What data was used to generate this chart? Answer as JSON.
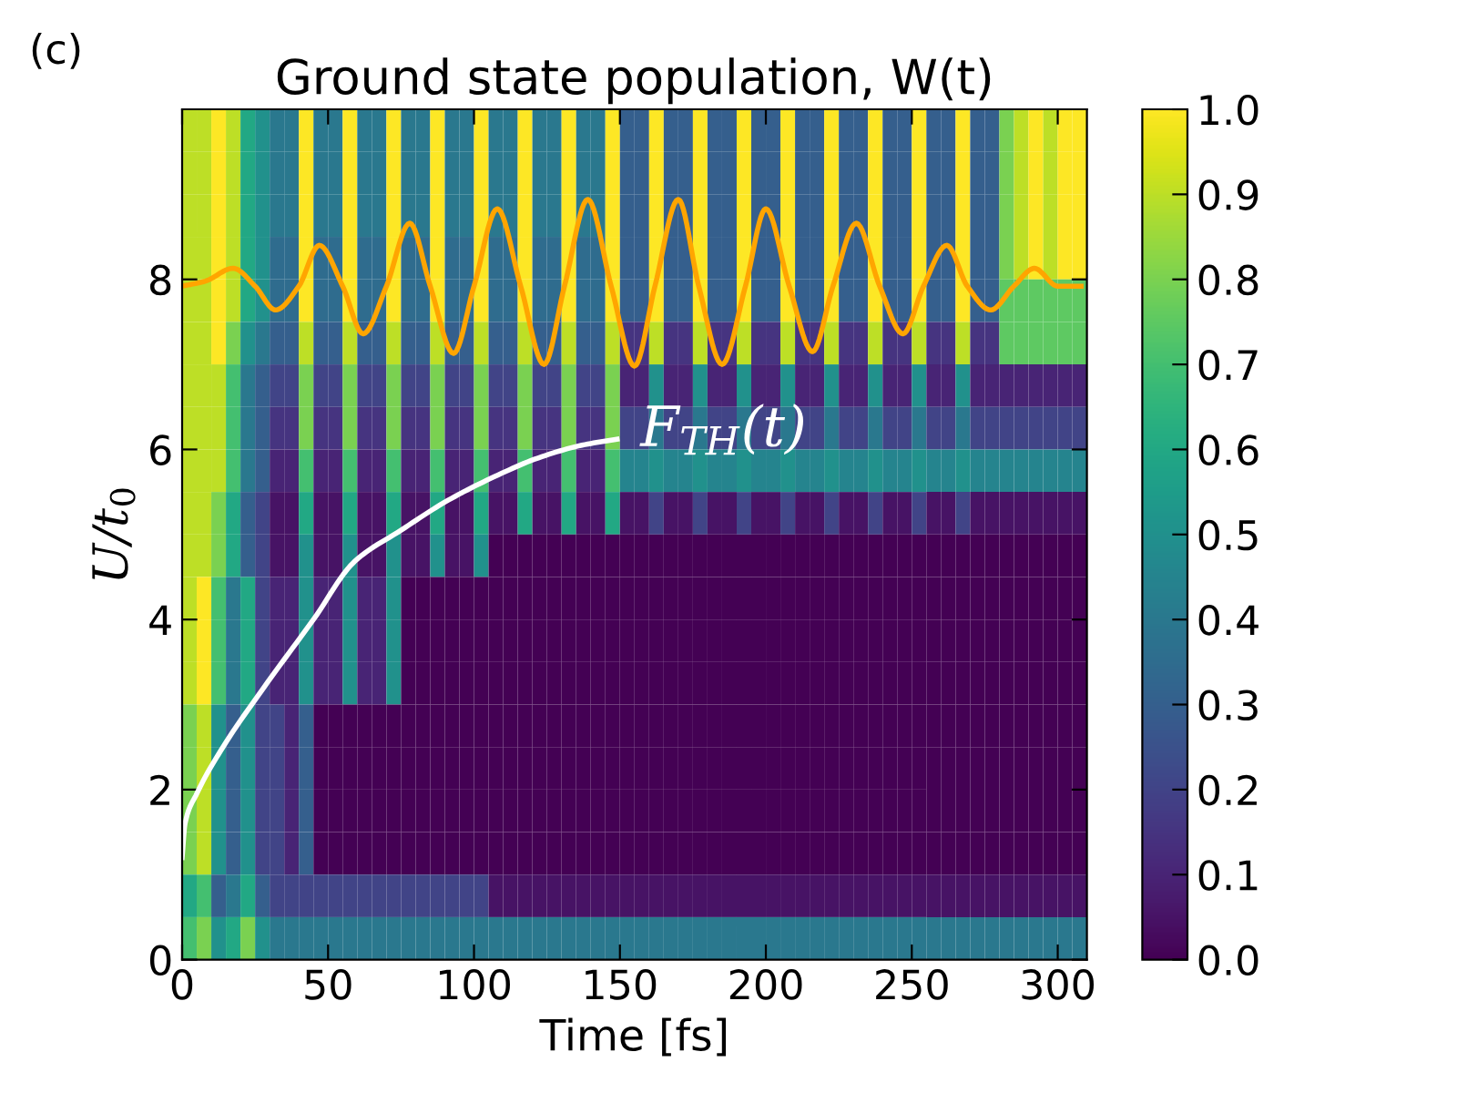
{
  "chart_data": {
    "type": "heatmap",
    "title": "Ground state population, W(t)",
    "xlabel": "Time [fs]",
    "ylabel": "U/t$_{0}$",
    "xlim": [
      0,
      310
    ],
    "ylim": [
      0,
      10
    ],
    "xticks": [
      0,
      50,
      100,
      150,
      200,
      250,
      300
    ],
    "yticks": [
      0,
      2,
      4,
      6,
      8
    ],
    "clim": [
      0,
      1
    ],
    "cticks": [
      {
        "value": 0,
        "label": "0.0"
      },
      {
        "value": 0.1,
        "label": "0.1"
      },
      {
        "value": 0.2,
        "label": "0.2"
      },
      {
        "value": 0.3,
        "label": "0.3"
      },
      {
        "value": 0.4,
        "label": "0.4"
      },
      {
        "value": 0.5,
        "label": "0.5"
      },
      {
        "value": 0.6,
        "label": "0.6"
      },
      {
        "value": 0.7,
        "label": "0.7"
      },
      {
        "value": 0.8,
        "label": "0.8"
      },
      {
        "value": 0.9,
        "label": "0.9"
      },
      {
        "value": 1,
        "label": "1.0"
      }
    ],
    "grid": false,
    "annotations": [
      "(c)"
    ],
    "cells": [
      [
        0.9,
        0.9,
        1.0,
        0.9,
        0.6,
        0.5,
        0.4,
        0.4,
        1.0,
        0.4,
        0.4,
        1.0,
        0.4,
        0.4,
        1.0,
        0.4,
        0.4,
        1.0,
        0.4,
        0.4,
        1.0,
        0.4,
        0.4,
        1.0,
        0.4,
        0.4,
        1.0,
        0.4,
        0.4,
        1.0,
        0.3,
        0.3,
        1.0,
        0.3,
        0.3,
        1.0,
        0.3,
        0.3,
        1.0,
        0.3,
        0.3,
        1.0,
        0.3,
        0.3,
        1.0,
        0.3,
        0.3,
        1.0,
        0.3,
        0.3,
        1.0,
        0.3,
        0.3,
        1.0,
        0.3,
        0.3,
        0.8,
        0.9,
        1.0,
        0.9,
        1.0,
        1.0
      ],
      [
        0.9,
        0.9,
        1.0,
        0.9,
        0.6,
        0.5,
        0.4,
        0.4,
        1.0,
        0.4,
        0.4,
        1.0,
        0.4,
        0.4,
        1.0,
        0.4,
        0.4,
        1.0,
        0.4,
        0.4,
        1.0,
        0.4,
        0.4,
        1.0,
        0.4,
        0.4,
        1.0,
        0.4,
        0.4,
        1.0,
        0.3,
        0.3,
        1.0,
        0.3,
        0.3,
        1.0,
        0.3,
        0.3,
        1.0,
        0.3,
        0.3,
        1.0,
        0.3,
        0.3,
        1.0,
        0.3,
        0.3,
        1.0,
        0.3,
        0.3,
        1.0,
        0.3,
        0.3,
        1.0,
        0.3,
        0.3,
        0.8,
        0.9,
        1.0,
        0.9,
        1.0,
        1.0
      ],
      [
        0.9,
        0.9,
        1.0,
        0.9,
        0.6,
        0.5,
        0.4,
        0.4,
        1.0,
        0.4,
        0.4,
        1.0,
        0.4,
        0.4,
        1.0,
        0.4,
        0.4,
        1.0,
        0.4,
        0.4,
        1.0,
        0.4,
        0.4,
        1.0,
        0.4,
        0.4,
        1.0,
        0.4,
        0.4,
        1.0,
        0.3,
        0.3,
        1.0,
        0.3,
        0.3,
        1.0,
        0.3,
        0.3,
        1.0,
        0.3,
        0.3,
        1.0,
        0.3,
        0.3,
        1.0,
        0.3,
        0.3,
        1.0,
        0.3,
        0.3,
        1.0,
        0.3,
        0.3,
        1.0,
        0.3,
        0.3,
        0.8,
        0.9,
        1.0,
        0.9,
        1.0,
        1.0
      ],
      [
        0.9,
        0.9,
        1.0,
        0.9,
        0.6,
        0.5,
        0.35,
        0.35,
        1.0,
        0.35,
        0.35,
        1.0,
        0.35,
        0.35,
        1.0,
        0.35,
        0.35,
        1.0,
        0.35,
        0.35,
        1.0,
        0.35,
        0.35,
        1.0,
        0.35,
        0.35,
        1.0,
        0.35,
        0.35,
        1.0,
        0.3,
        0.3,
        1.0,
        0.3,
        0.3,
        1.0,
        0.3,
        0.3,
        1.0,
        0.3,
        0.3,
        1.0,
        0.3,
        0.3,
        1.0,
        0.3,
        0.3,
        1.0,
        0.3,
        0.3,
        1.0,
        0.3,
        0.3,
        1.0,
        0.3,
        0.3,
        0.8,
        0.9,
        1.0,
        0.9,
        1.0,
        1.0
      ],
      [
        0.9,
        0.9,
        1.0,
        0.9,
        0.6,
        0.5,
        0.35,
        0.35,
        1.0,
        0.35,
        0.35,
        1.0,
        0.35,
        0.35,
        1.0,
        0.35,
        0.35,
        1.0,
        0.35,
        0.35,
        1.0,
        0.35,
        0.35,
        1.0,
        0.35,
        0.35,
        1.0,
        0.35,
        0.35,
        1.0,
        0.3,
        0.3,
        1.0,
        0.3,
        0.3,
        1.0,
        0.3,
        0.3,
        1.0,
        0.3,
        0.3,
        1.0,
        0.3,
        0.3,
        1.0,
        0.3,
        0.3,
        1.0,
        0.3,
        0.3,
        1.0,
        0.3,
        0.3,
        1.0,
        0.3,
        0.3,
        0.75,
        0.75,
        0.75,
        0.75,
        0.75,
        0.75
      ],
      [
        0.9,
        0.9,
        1.0,
        0.8,
        0.5,
        0.4,
        0.3,
        0.3,
        0.9,
        0.3,
        0.3,
        0.9,
        0.3,
        0.3,
        0.9,
        0.3,
        0.3,
        0.9,
        0.3,
        0.3,
        0.9,
        0.3,
        0.3,
        0.9,
        0.3,
        0.3,
        0.9,
        0.3,
        0.3,
        0.9,
        0.15,
        0.15,
        0.9,
        0.15,
        0.15,
        0.9,
        0.15,
        0.15,
        0.9,
        0.15,
        0.15,
        0.9,
        0.15,
        0.15,
        0.9,
        0.15,
        0.15,
        0.9,
        0.15,
        0.15,
        0.9,
        0.15,
        0.15,
        0.9,
        0.15,
        0.15,
        0.75,
        0.75,
        0.75,
        0.75,
        0.75,
        0.75
      ],
      [
        0.9,
        0.9,
        0.9,
        0.7,
        0.4,
        0.3,
        0.2,
        0.2,
        0.8,
        0.2,
        0.2,
        0.8,
        0.2,
        0.2,
        0.8,
        0.2,
        0.2,
        0.8,
        0.2,
        0.2,
        0.8,
        0.2,
        0.2,
        0.8,
        0.2,
        0.2,
        0.8,
        0.2,
        0.2,
        0.8,
        0.1,
        0.1,
        0.5,
        0.1,
        0.1,
        0.5,
        0.1,
        0.1,
        0.5,
        0.1,
        0.1,
        0.5,
        0.1,
        0.1,
        0.5,
        0.1,
        0.1,
        0.5,
        0.1,
        0.1,
        0.5,
        0.1,
        0.1,
        0.5,
        0.1,
        0.1,
        0.1,
        0.1,
        0.1,
        0.1,
        0.1,
        0.1
      ],
      [
        0.9,
        0.9,
        0.9,
        0.7,
        0.4,
        0.3,
        0.15,
        0.15,
        0.8,
        0.15,
        0.15,
        0.8,
        0.15,
        0.15,
        0.8,
        0.15,
        0.15,
        0.8,
        0.15,
        0.15,
        0.8,
        0.15,
        0.15,
        0.8,
        0.15,
        0.15,
        0.8,
        0.15,
        0.15,
        0.8,
        0.2,
        0.2,
        0.4,
        0.2,
        0.2,
        0.4,
        0.2,
        0.2,
        0.4,
        0.2,
        0.2,
        0.4,
        0.2,
        0.2,
        0.4,
        0.2,
        0.2,
        0.4,
        0.2,
        0.2,
        0.4,
        0.2,
        0.2,
        0.4,
        0.2,
        0.2,
        0.2,
        0.2,
        0.2,
        0.2,
        0.2,
        0.2
      ],
      [
        0.9,
        0.9,
        0.9,
        0.7,
        0.4,
        0.3,
        0.1,
        0.1,
        0.7,
        0.1,
        0.1,
        0.7,
        0.1,
        0.1,
        0.7,
        0.1,
        0.1,
        0.7,
        0.1,
        0.1,
        0.7,
        0.1,
        0.1,
        0.7,
        0.1,
        0.1,
        0.7,
        0.1,
        0.1,
        0.7,
        0.45,
        0.45,
        0.5,
        0.45,
        0.45,
        0.5,
        0.45,
        0.45,
        0.5,
        0.45,
        0.45,
        0.5,
        0.45,
        0.45,
        0.5,
        0.45,
        0.45,
        0.5,
        0.45,
        0.45,
        0.5,
        0.45,
        0.45,
        0.5,
        0.45,
        0.45,
        0.45,
        0.45,
        0.45,
        0.45,
        0.45,
        0.45
      ],
      [
        0.9,
        0.9,
        0.8,
        0.6,
        0.3,
        0.2,
        0.05,
        0.05,
        0.6,
        0.05,
        0.05,
        0.6,
        0.05,
        0.05,
        0.6,
        0.05,
        0.05,
        0.6,
        0.05,
        0.05,
        0.6,
        0.05,
        0.05,
        0.6,
        0.05,
        0.05,
        0.6,
        0.05,
        0.05,
        0.6,
        0.05,
        0.05,
        0.2,
        0.05,
        0.05,
        0.2,
        0.05,
        0.05,
        0.2,
        0.05,
        0.05,
        0.2,
        0.05,
        0.05,
        0.2,
        0.05,
        0.05,
        0.2,
        0.05,
        0.05,
        0.2,
        0.05,
        0.05,
        0.2,
        0.05,
        0.05,
        0.05,
        0.05,
        0.05,
        0.05,
        0.05,
        0.05
      ],
      [
        0.9,
        0.9,
        0.8,
        0.6,
        0.3,
        0.2,
        0.05,
        0.05,
        0.5,
        0.05,
        0.05,
        0.5,
        0.05,
        0.05,
        0.5,
        0.05,
        0.05,
        0.5,
        0.05,
        0.05,
        0.5,
        0,
        0,
        0,
        0,
        0,
        0,
        0,
        0,
        0,
        0,
        0,
        0,
        0,
        0,
        0,
        0,
        0,
        0,
        0,
        0,
        0,
        0,
        0,
        0,
        0,
        0,
        0,
        0,
        0,
        0,
        0,
        0,
        0,
        0,
        0,
        0,
        0,
        0,
        0,
        0,
        0
      ],
      [
        0.9,
        1.0,
        0.7,
        0.4,
        0.6,
        0.2,
        0.1,
        0.1,
        0.5,
        0.1,
        0.1,
        0.5,
        0.1,
        0.1,
        0.5,
        0,
        0,
        0,
        0,
        0,
        0,
        0,
        0,
        0,
        0,
        0,
        0,
        0,
        0,
        0,
        0,
        0,
        0,
        0,
        0,
        0,
        0,
        0,
        0,
        0,
        0,
        0,
        0,
        0,
        0,
        0,
        0,
        0,
        0,
        0,
        0,
        0,
        0,
        0,
        0,
        0,
        0,
        0,
        0,
        0,
        0,
        0
      ],
      [
        0.9,
        1.0,
        0.7,
        0.4,
        0.6,
        0.2,
        0.1,
        0.1,
        0.5,
        0.1,
        0.1,
        0.5,
        0.1,
        0.1,
        0.5,
        0,
        0,
        0,
        0,
        0,
        0,
        0,
        0,
        0,
        0,
        0,
        0,
        0,
        0,
        0,
        0,
        0,
        0,
        0,
        0,
        0,
        0,
        0,
        0,
        0,
        0,
        0,
        0,
        0,
        0,
        0,
        0,
        0,
        0,
        0,
        0,
        0,
        0,
        0,
        0,
        0,
        0,
        0,
        0,
        0,
        0,
        0
      ],
      [
        0.9,
        1.0,
        0.7,
        0.4,
        0.6,
        0.2,
        0.1,
        0.1,
        0.5,
        0.1,
        0.1,
        0.5,
        0.1,
        0.1,
        0.5,
        0,
        0,
        0,
        0,
        0,
        0,
        0,
        0,
        0,
        0,
        0,
        0,
        0,
        0,
        0,
        0,
        0,
        0,
        0,
        0,
        0,
        0,
        0,
        0,
        0,
        0,
        0,
        0,
        0,
        0,
        0,
        0,
        0,
        0,
        0,
        0,
        0,
        0,
        0,
        0,
        0,
        0,
        0,
        0,
        0,
        0,
        0
      ],
      [
        0.8,
        0.9,
        0.5,
        0.3,
        0.5,
        0.2,
        0.2,
        0.1,
        0.3,
        0,
        0,
        0,
        0,
        0,
        0,
        0,
        0,
        0,
        0,
        0,
        0,
        0,
        0,
        0,
        0,
        0,
        0,
        0,
        0,
        0,
        0,
        0,
        0,
        0,
        0,
        0,
        0,
        0,
        0,
        0,
        0,
        0,
        0,
        0,
        0,
        0,
        0,
        0,
        0,
        0,
        0,
        0,
        0,
        0,
        0,
        0,
        0,
        0,
        0,
        0,
        0,
        0
      ],
      [
        0.8,
        0.9,
        0.5,
        0.3,
        0.5,
        0.2,
        0.2,
        0.1,
        0.3,
        0,
        0,
        0,
        0,
        0,
        0,
        0,
        0,
        0,
        0,
        0,
        0,
        0,
        0,
        0,
        0,
        0,
        0,
        0,
        0,
        0,
        0,
        0,
        0,
        0,
        0,
        0,
        0,
        0,
        0,
        0,
        0,
        0,
        0,
        0,
        0,
        0,
        0,
        0,
        0,
        0,
        0,
        0,
        0,
        0,
        0,
        0,
        0,
        0,
        0,
        0,
        0,
        0
      ],
      [
        0.8,
        0.9,
        0.5,
        0.3,
        0.5,
        0.2,
        0.2,
        0.1,
        0.3,
        0,
        0,
        0,
        0,
        0,
        0,
        0,
        0,
        0,
        0,
        0,
        0,
        0,
        0,
        0,
        0,
        0,
        0,
        0,
        0,
        0,
        0,
        0,
        0,
        0,
        0,
        0,
        0,
        0,
        0,
        0,
        0,
        0,
        0,
        0,
        0,
        0,
        0,
        0,
        0,
        0,
        0,
        0,
        0,
        0,
        0,
        0,
        0,
        0,
        0,
        0,
        0,
        0
      ],
      [
        0.8,
        0.9,
        0.5,
        0.3,
        0.5,
        0.2,
        0.2,
        0.1,
        0.3,
        0,
        0,
        0,
        0,
        0,
        0,
        0,
        0,
        0,
        0,
        0,
        0,
        0,
        0,
        0,
        0,
        0,
        0,
        0,
        0,
        0,
        0,
        0,
        0,
        0,
        0,
        0,
        0,
        0,
        0,
        0,
        0,
        0,
        0,
        0,
        0,
        0,
        0,
        0,
        0,
        0,
        0,
        0,
        0,
        0,
        0,
        0,
        0,
        0,
        0,
        0,
        0,
        0
      ],
      [
        0.6,
        0.7,
        0.3,
        0.4,
        0.6,
        0.3,
        0.2,
        0.2,
        0.2,
        0.2,
        0.2,
        0.2,
        0.2,
        0.2,
        0.2,
        0.2,
        0.2,
        0.2,
        0.2,
        0.2,
        0.2,
        0.05,
        0.05,
        0.05,
        0.05,
        0.05,
        0.05,
        0.05,
        0.05,
        0.05,
        0.05,
        0.05,
        0.05,
        0.05,
        0.05,
        0.05,
        0.05,
        0.05,
        0.05,
        0.05,
        0.05,
        0.05,
        0.05,
        0.05,
        0.05,
        0.05,
        0.05,
        0.05,
        0.05,
        0.05,
        0.05,
        0.05,
        0.05,
        0.05,
        0.05,
        0.05,
        0.05,
        0.05,
        0.05,
        0.05,
        0.05,
        0.05
      ],
      [
        0.7,
        0.8,
        0.5,
        0.6,
        0.8,
        0.5,
        0.4,
        0.4,
        0.4,
        0.4,
        0.4,
        0.4,
        0.4,
        0.4,
        0.4,
        0.4,
        0.4,
        0.4,
        0.4,
        0.4,
        0.4,
        0.4,
        0.4,
        0.4,
        0.4,
        0.4,
        0.4,
        0.4,
        0.4,
        0.4,
        0.4,
        0.4,
        0.4,
        0.4,
        0.4,
        0.4,
        0.4,
        0.4,
        0.4,
        0.4,
        0.4,
        0.4,
        0.4,
        0.4,
        0.4,
        0.4,
        0.4,
        0.4,
        0.4,
        0.4,
        0.4,
        0.4,
        0.4,
        0.4,
        0.4,
        0.4,
        0.4,
        0.4,
        0.4,
        0.4,
        0.4,
        0.4
      ]
    ],
    "series": [
      {
        "type": "line",
        "color": "#ffa500",
        "x": [
          0,
          8,
          17.5,
          25,
          32,
          40,
          47,
          55,
          62,
          70,
          78,
          85,
          93,
          100,
          108,
          116,
          124,
          131,
          139,
          147,
          155,
          162,
          170,
          177,
          185,
          193,
          200,
          208,
          216,
          223,
          231,
          239,
          247,
          254,
          262,
          269,
          277,
          285,
          292,
          300,
          308
        ],
        "values": [
          7.92,
          7.98,
          8.13,
          7.92,
          7.64,
          7.92,
          8.4,
          7.92,
          7.36,
          7.92,
          8.66,
          7.92,
          7.13,
          7.92,
          8.83,
          7.92,
          7.0,
          7.92,
          8.94,
          7.92,
          6.98,
          7.92,
          8.94,
          7.92,
          7.0,
          7.92,
          8.83,
          7.92,
          7.15,
          7.92,
          8.66,
          7.92,
          7.36,
          7.92,
          8.4,
          7.92,
          7.64,
          7.92,
          8.13,
          7.92,
          7.92
        ]
      },
      {
        "type": "line",
        "name": "F$_{TH}$(t)",
        "color": "#ffffff",
        "x": [
          0,
          1,
          5,
          14,
          28,
          45,
          59,
          75,
          91,
          107,
          122,
          137,
          149
        ],
        "values": [
          1.2,
          1.6,
          1.95,
          2.5,
          3.2,
          4.0,
          4.68,
          5.05,
          5.4,
          5.68,
          5.9,
          6.05,
          6.12
        ]
      }
    ]
  }
}
